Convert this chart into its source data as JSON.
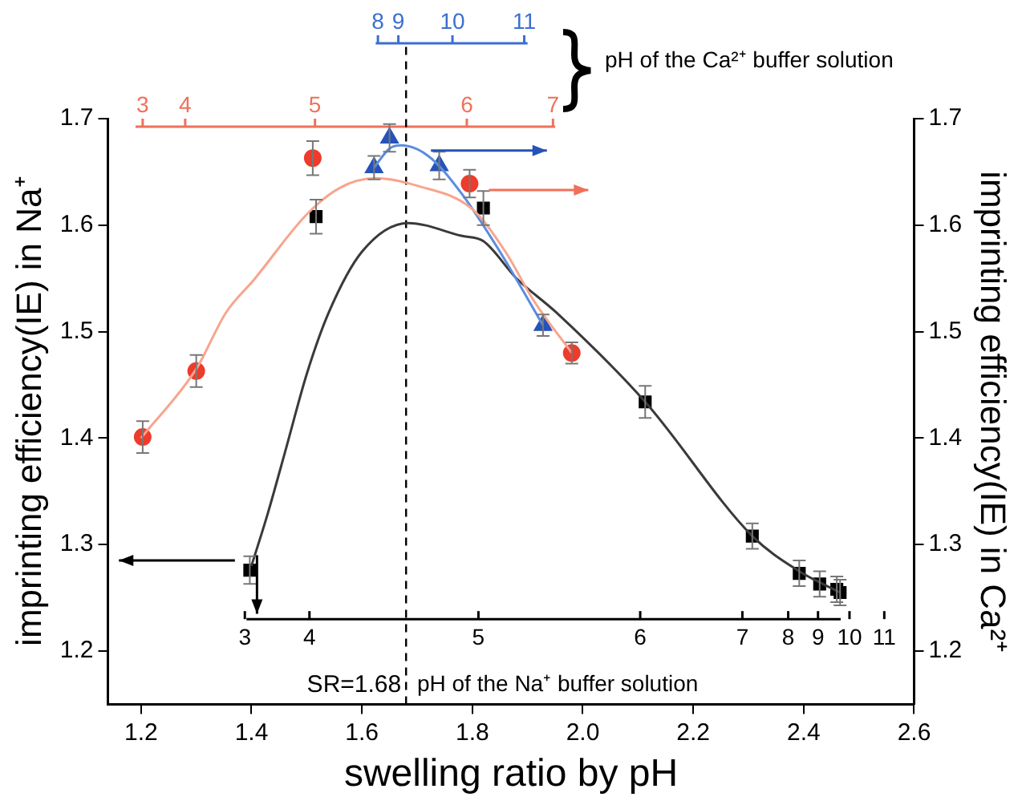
{
  "chart_data": {
    "type": "scatter",
    "xlabel": "swelling ratio by pH",
    "ylabel": "imprinting efficiency(IE) in Na⁺",
    "y2label": "imprinting efficiency(IE) in Ca²⁺",
    "xlim": [
      1.14,
      2.6
    ],
    "xticks": [
      1.2,
      1.4,
      1.6,
      1.8,
      {
        "value": 2,
        "label": "2.0"
      },
      2.2,
      2.4,
      2.6
    ],
    "ylim": [
      1.15,
      1.7
    ],
    "yticks": [
      1.2,
      1.3,
      1.4,
      1.5,
      1.6,
      1.7
    ],
    "y2lim": [
      1.15,
      1.7
    ],
    "y2ticks": [
      1.2,
      1.3,
      1.4,
      1.5,
      1.6,
      1.7
    ],
    "annotations": [
      "8",
      "9",
      "10",
      "11",
      "pH of the Ca²⁺ buffer solution",
      "3",
      "4",
      "5",
      "6",
      "7",
      "3",
      "4",
      "5",
      "6",
      "7",
      "8",
      "9",
      "10",
      "11",
      "pH of the Na⁺ buffer solution"
    ],
    "ref_lines": [
      {
        "axis": "x",
        "value": 1.68,
        "label": "SR=1.68",
        "line_style": "dashed",
        "color": "#000000"
      }
    ],
    "grid": false,
    "legend": false,
    "series": [
      {
        "type": "line",
        "marker": "none",
        "color": "#f7a58e",
        "x": [
          1.2,
          1.3,
          1.354,
          1.405,
          1.5,
          1.56,
          1.625,
          1.7,
          1.8,
          1.86,
          1.91,
          1.98
        ],
        "values": [
          1.4,
          1.465,
          1.518,
          1.549,
          1.61,
          1.635,
          1.644,
          1.637,
          1.615,
          1.575,
          1.53,
          1.48
        ]
      },
      {
        "type": "line",
        "marker": "none",
        "color": "#5b8de0",
        "x": [
          1.622,
          1.65,
          1.67,
          1.72,
          1.78,
          1.85,
          1.928
        ],
        "values": [
          1.654,
          1.672,
          1.675,
          1.665,
          1.63,
          1.575,
          1.506
        ]
      },
      {
        "type": "line",
        "marker": "none",
        "color": "#3a3a3a",
        "x": [
          1.4,
          1.43,
          1.463,
          1.5,
          1.54,
          1.6,
          1.684,
          1.78,
          1.82,
          1.88,
          1.952,
          2.113,
          2.307,
          2.392,
          2.466
        ],
        "values": [
          1.28,
          1.33,
          1.391,
          1.46,
          1.518,
          1.575,
          1.602,
          1.59,
          1.585,
          1.55,
          1.518,
          1.434,
          1.308,
          1.275,
          1.255
        ]
      },
      {
        "type": "scatter",
        "marker": "circle",
        "color": "#ee3b2b",
        "x": [
          1.203,
          1.3,
          1.511,
          1.795,
          1.98
        ],
        "values": [
          1.401,
          1.463,
          1.663,
          1.639,
          1.48
        ],
        "errors": [
          0.015,
          0.015,
          0.016,
          0.013,
          0.01
        ]
      },
      {
        "type": "scatter",
        "marker": "triangle",
        "color": "#2553b8",
        "x": [
          1.622,
          1.65,
          1.74,
          1.928
        ],
        "values": [
          1.654,
          1.682,
          1.656,
          1.506
        ],
        "errors": [
          0.011,
          0.013,
          0.013,
          0.01
        ]
      },
      {
        "type": "scatter",
        "marker": "square",
        "color": "#000000",
        "x": [
          1.397,
          1.517,
          1.82,
          2.113,
          2.307,
          2.392,
          2.429,
          2.46,
          2.466
        ],
        "values": [
          1.276,
          1.608,
          1.616,
          1.434,
          1.308,
          1.273,
          1.263,
          1.258,
          1.255
        ],
        "errors": [
          0.013,
          0.016,
          0.016,
          0.015,
          0.012,
          0.012,
          0.012,
          0.012,
          0.012
        ]
      }
    ]
  }
}
